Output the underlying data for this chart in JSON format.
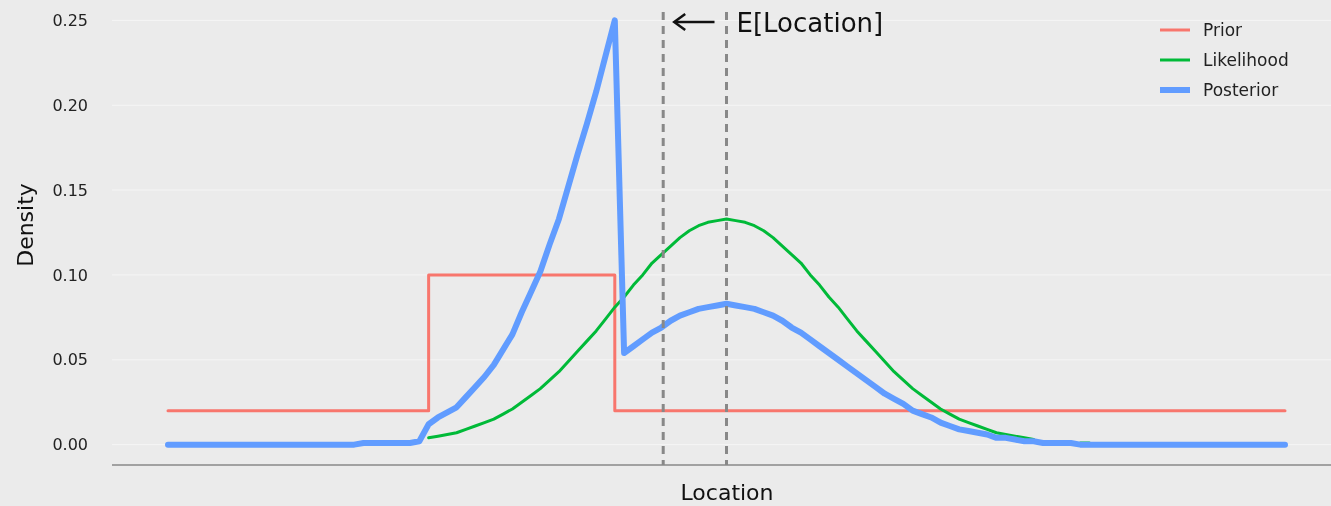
{
  "chart_data": {
    "type": "line",
    "xlabel": "Location",
    "ylabel": "Density",
    "annotations": [
      "E[Location]"
    ],
    "categories": [
      null,
      null,
      null,
      null,
      null,
      null,
      null,
      null,
      null,
      null,
      null,
      null,
      null,
      null,
      null,
      null,
      null,
      null,
      null,
      null,
      null,
      null,
      null,
      null,
      null,
      null,
      null,
      null,
      null,
      null,
      null,
      null,
      null,
      null,
      null,
      null,
      null,
      null,
      null,
      null,
      null,
      null,
      null,
      null,
      null,
      null,
      null,
      null,
      null,
      null,
      null,
      null,
      null,
      null,
      null,
      null,
      null,
      null,
      null,
      null,
      null,
      null,
      null,
      null,
      null,
      null,
      null,
      null,
      null,
      null,
      null,
      null,
      null,
      null,
      null,
      null,
      null,
      null,
      null,
      null,
      null,
      null,
      null,
      null,
      null,
      null,
      null,
      null,
      null,
      null,
      null,
      null,
      null,
      null,
      null,
      null,
      null,
      null,
      null,
      null,
      null,
      null,
      null,
      null,
      null,
      null,
      null,
      null,
      null,
      null,
      null,
      null,
      null,
      null,
      null,
      null,
      null,
      null,
      null,
      null,
      null
    ],
    "series": [
      {
        "name": "Prior",
        "type": "step",
        "color": "#f8766d",
        "values": [
          0.02,
          0.02,
          0.02,
          0.02,
          0.02,
          0.02,
          0.02,
          0.02,
          0.02,
          0.02,
          0.02,
          0.02,
          0.02,
          0.02,
          0.02,
          0.02,
          0.02,
          0.02,
          0.02,
          0.02,
          0.02,
          0.02,
          0.02,
          0.02,
          0.02,
          0.02,
          0.02,
          0.02,
          0.1,
          0.1,
          0.1,
          0.1,
          0.1,
          0.1,
          0.1,
          0.1,
          0.1,
          0.1,
          0.1,
          0.1,
          0.1,
          0.1,
          0.1,
          0.1,
          0.1,
          0.1,
          0.1,
          0.1,
          0.02,
          0.02,
          0.02,
          0.02,
          0.02,
          0.02,
          0.02,
          0.02,
          0.02,
          0.02,
          0.02,
          0.02,
          0.02,
          0.02,
          0.02,
          0.02,
          0.02,
          0.02,
          0.02,
          0.02,
          0.02,
          0.02,
          0.02,
          0.02,
          0.02,
          0.02,
          0.02,
          0.02,
          0.02,
          0.02,
          0.02,
          0.02,
          0.02,
          0.02,
          0.02,
          0.02,
          0.02,
          0.02,
          0.02,
          0.02,
          0.02,
          0.02,
          0.02,
          0.02,
          0.02,
          0.02,
          0.02,
          0.02,
          0.02,
          0.02,
          0.02,
          0.02,
          0.02,
          0.02,
          0.02,
          0.02,
          0.02,
          0.02,
          0.02,
          0.02,
          0.02,
          0.02,
          0.02,
          0.02,
          0.02,
          0.02,
          0.02,
          0.02,
          0.02,
          0.02,
          0.02,
          0.02,
          0.02
        ]
      },
      {
        "name": "Likelihood",
        "type": "line",
        "color": "#00ba38",
        "values": [
          null,
          null,
          null,
          null,
          null,
          null,
          null,
          null,
          null,
          null,
          null,
          null,
          null,
          null,
          null,
          null,
          null,
          null,
          null,
          null,
          null,
          null,
          null,
          null,
          null,
          null,
          null,
          null,
          0.004,
          0.005,
          0.006,
          0.007,
          0.009,
          0.011,
          0.013,
          0.015,
          0.018,
          0.021,
          0.025,
          0.029,
          0.033,
          0.038,
          0.043,
          0.049,
          0.055,
          0.061,
          0.067,
          0.074,
          0.081,
          0.087,
          0.094,
          0.1,
          0.107,
          0.112,
          0.117,
          0.122,
          0.126,
          0.129,
          0.131,
          0.132,
          0.133,
          0.132,
          0.131,
          0.129,
          0.126,
          0.122,
          0.117,
          0.112,
          0.107,
          0.1,
          0.094,
          0.087,
          0.081,
          0.074,
          0.067,
          0.061,
          0.055,
          0.049,
          0.043,
          0.038,
          0.033,
          0.029,
          0.025,
          0.021,
          0.018,
          0.015,
          0.013,
          0.011,
          0.009,
          0.007,
          0.006,
          0.005,
          0.004,
          0.003,
          null,
          null,
          null,
          null,
          0.001,
          0.001,
          null,
          null,
          null,
          null,
          null,
          null,
          null,
          null,
          null,
          null,
          null,
          null,
          null,
          null,
          null,
          null,
          null,
          null,
          null,
          null,
          null
        ]
      },
      {
        "name": "Posterior",
        "type": "line",
        "color": "#619cff",
        "values": [
          0,
          0,
          0,
          0,
          0,
          0,
          0,
          0,
          0,
          0,
          0,
          0,
          0,
          0,
          0,
          0,
          0,
          0,
          0,
          0,
          0,
          0.001,
          0.001,
          0.001,
          0.001,
          0.001,
          0.001,
          0.002,
          0.012,
          0.016,
          0.019,
          0.022,
          0.028,
          0.034,
          0.04,
          0.047,
          0.056,
          0.065,
          0.078,
          0.09,
          0.102,
          0.118,
          0.133,
          0.152,
          0.171,
          0.189,
          0.208,
          0.229,
          0.25,
          0.054,
          0.058,
          0.062,
          0.066,
          0.069,
          0.073,
          0.076,
          0.078,
          0.08,
          0.081,
          0.082,
          0.083,
          0.082,
          0.081,
          0.08,
          0.078,
          0.076,
          0.073,
          0.069,
          0.066,
          0.062,
          0.058,
          0.054,
          0.05,
          0.046,
          0.042,
          0.038,
          0.034,
          0.03,
          0.027,
          0.024,
          0.02,
          0.018,
          0.016,
          0.013,
          0.011,
          0.009,
          0.008,
          0.007,
          0.006,
          0.004,
          0.004,
          0.003,
          0.002,
          0.002,
          0.001,
          0.001,
          0.001,
          0.001,
          0,
          0,
          0,
          0,
          0,
          0,
          0,
          0,
          0,
          0,
          0,
          0,
          0,
          0,
          0,
          0,
          0,
          0,
          0,
          0,
          0,
          0,
          0
        ]
      }
    ],
    "ylim": [
      -0.012,
      0.262
    ],
    "yticks": [
      {
        "value": 0,
        "label": "0.00"
      },
      {
        "value": 0.05,
        "label": "0.05"
      },
      {
        "value": 0.1,
        "label": "0.10"
      },
      {
        "value": 0.15,
        "label": "0.15"
      },
      {
        "value": 0.2,
        "label": "0.20"
      },
      {
        "value": 0.25,
        "label": "0.25"
      }
    ],
    "tick_labels": "y",
    "grid": "y",
    "legend": "top right"
  }
}
